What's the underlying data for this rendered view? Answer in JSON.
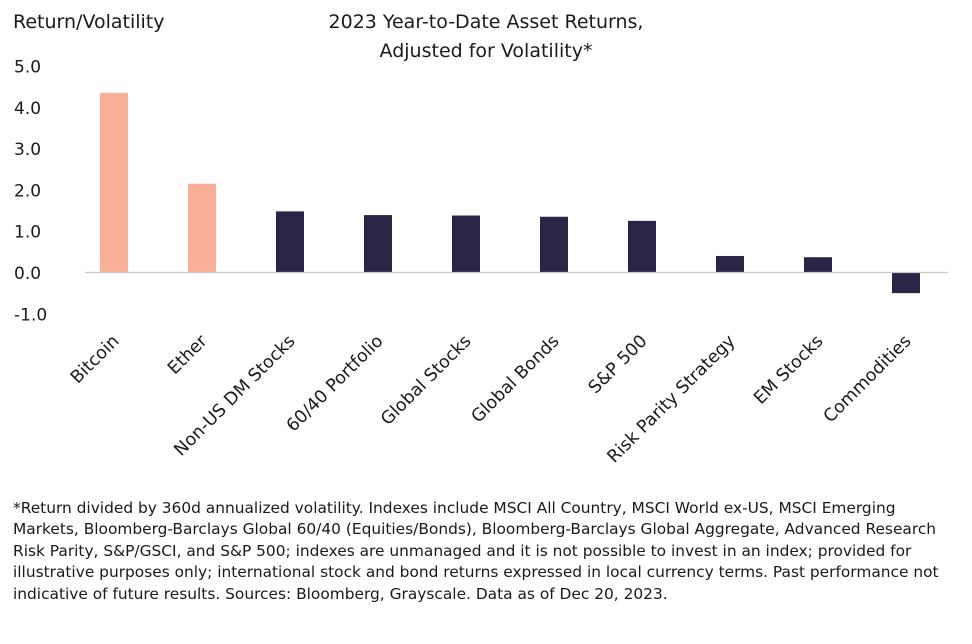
{
  "chart_data": {
    "type": "bar",
    "title_lines": [
      "2023 Year-to-Date Asset Returns,",
      "Adjusted for Volatility*"
    ],
    "ylabel": "Return/Volatility",
    "xlabel": "",
    "ylim": [
      -1.0,
      5.0
    ],
    "yticks": [
      "5.0",
      "4.0",
      "3.0",
      "2.0",
      "1.0",
      "0.0",
      "-1.0"
    ],
    "ytick_values": [
      5,
      4,
      3,
      2,
      1,
      0,
      -1
    ],
    "categories": [
      "Bitcoin",
      "Ether",
      "Non-US DM Stocks",
      "60/40 Portfolio",
      "Global Stocks",
      "Global Bonds",
      "S&P 500",
      "Risk Parity Strategy",
      "EM Stocks",
      "Commodities"
    ],
    "values": [
      4.35,
      2.15,
      1.48,
      1.39,
      1.38,
      1.35,
      1.25,
      0.4,
      0.37,
      -0.5
    ],
    "colors": [
      "#f9af96",
      "#f9af96",
      "#2a2446",
      "#2a2446",
      "#2a2446",
      "#2a2446",
      "#2a2446",
      "#2a2446",
      "#2a2446",
      "#2a2446"
    ],
    "grid": false,
    "legend": "none"
  },
  "footnote": "*Return divided by 360d annualized volatility. Indexes include MSCI All Country, MSCI World ex-US, MSCI Emerging Markets, Bloomberg-Barclays Global 60/40 (Equities/Bonds), Bloomberg-Barclays Global Aggregate, Advanced Research Risk Parity, S&P/GSCI, and S&P 500; indexes are unmanaged and it is not possible to invest in an index; provided for illustrative purposes only; international stock and bond returns expressed in local currency terms. Past performance not indicative of future results. Sources: Bloomberg, Grayscale. Data as of Dec 20, 2023."
}
